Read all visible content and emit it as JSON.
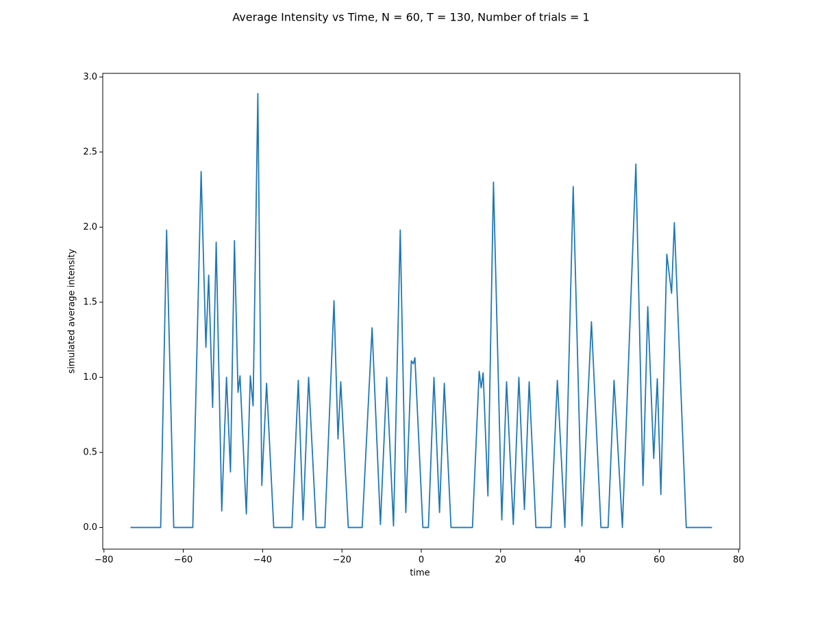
{
  "chart_data": {
    "type": "line",
    "title": "Average Intensity vs Time, N = 60, T = 130, Number of trials = 1",
    "xlabel": "time",
    "ylabel": "simulated average intensity",
    "x": [
      -73.3,
      -65.9,
      -65.7,
      -64.2,
      -62.4,
      -57.6,
      -55.5,
      -54.3,
      -53.6,
      -52.6,
      -51.7,
      -50.3,
      -49.1,
      -48.1,
      -47.1,
      -46.2,
      -45.7,
      -44.1,
      -43.1,
      -42.4,
      -41.2,
      -40.2,
      -39.0,
      -37.2,
      -32.6,
      -31.0,
      -29.8,
      -28.4,
      -26.5,
      -24.3,
      -22.0,
      -21.0,
      -20.3,
      -18.4,
      -14.9,
      -12.4,
      -10.3,
      -8.7,
      -7.0,
      -5.3,
      -3.9,
      -2.5,
      -2.0,
      -1.6,
      0.4,
      1.8,
      3.2,
      4.6,
      5.8,
      7.5,
      12.9,
      14.6,
      15.1,
      15.6,
      16.8,
      18.2,
      20.3,
      21.5,
      23.2,
      24.6,
      26.0,
      27.2,
      28.9,
      32.7,
      34.3,
      36.2,
      38.3,
      40.5,
      42.9,
      45.3,
      47.1,
      48.6,
      50.7,
      54.1,
      55.9,
      57.1,
      58.6,
      59.5,
      60.4,
      61.9,
      63.1,
      63.8,
      66.8,
      73.3
    ],
    "series": [
      {
        "color": "#1f77b4",
        "values": [
          0,
          0,
          0,
          1.98,
          0,
          0,
          2.37,
          1.2,
          1.68,
          0.8,
          1.9,
          0.11,
          1.0,
          0.37,
          1.91,
          0.9,
          1.01,
          0.09,
          1.01,
          0.81,
          2.89,
          0.28,
          0.96,
          0,
          0,
          0.98,
          0.05,
          1.0,
          0,
          0,
          1.51,
          0.59,
          0.97,
          0,
          0,
          1.33,
          0.02,
          1.0,
          0.01,
          1.98,
          0.1,
          1.11,
          1.09,
          1.13,
          0,
          0,
          1.0,
          0.1,
          0.96,
          0,
          0,
          1.04,
          0.93,
          1.03,
          0.21,
          2.3,
          0.05,
          0.97,
          0.02,
          1.0,
          0.12,
          0.97,
          0,
          0,
          0.98,
          0.0,
          2.27,
          0.01,
          1.37,
          0,
          0,
          0.98,
          0.0,
          2.42,
          0.28,
          1.47,
          0.46,
          0.99,
          0.22,
          1.82,
          1.56,
          2.03,
          0,
          0
        ]
      }
    ],
    "xlim": [
      -80.3,
      80.3
    ],
    "ylim": [
      -0.144,
      3.024
    ],
    "xticks": [
      {
        "value": -80,
        "label": "−80"
      },
      {
        "value": -60,
        "label": "−60"
      },
      {
        "value": -40,
        "label": "−40"
      },
      {
        "value": -20,
        "label": "−20"
      },
      0,
      20,
      40,
      60,
      80
    ],
    "yticks": [
      {
        "value": 0,
        "label": "0.0"
      },
      0.5,
      {
        "value": 1,
        "label": "1.0"
      },
      1.5,
      {
        "value": 2,
        "label": "2.0"
      },
      2.5,
      {
        "value": 3,
        "label": "3.0"
      }
    ],
    "grid": false
  }
}
